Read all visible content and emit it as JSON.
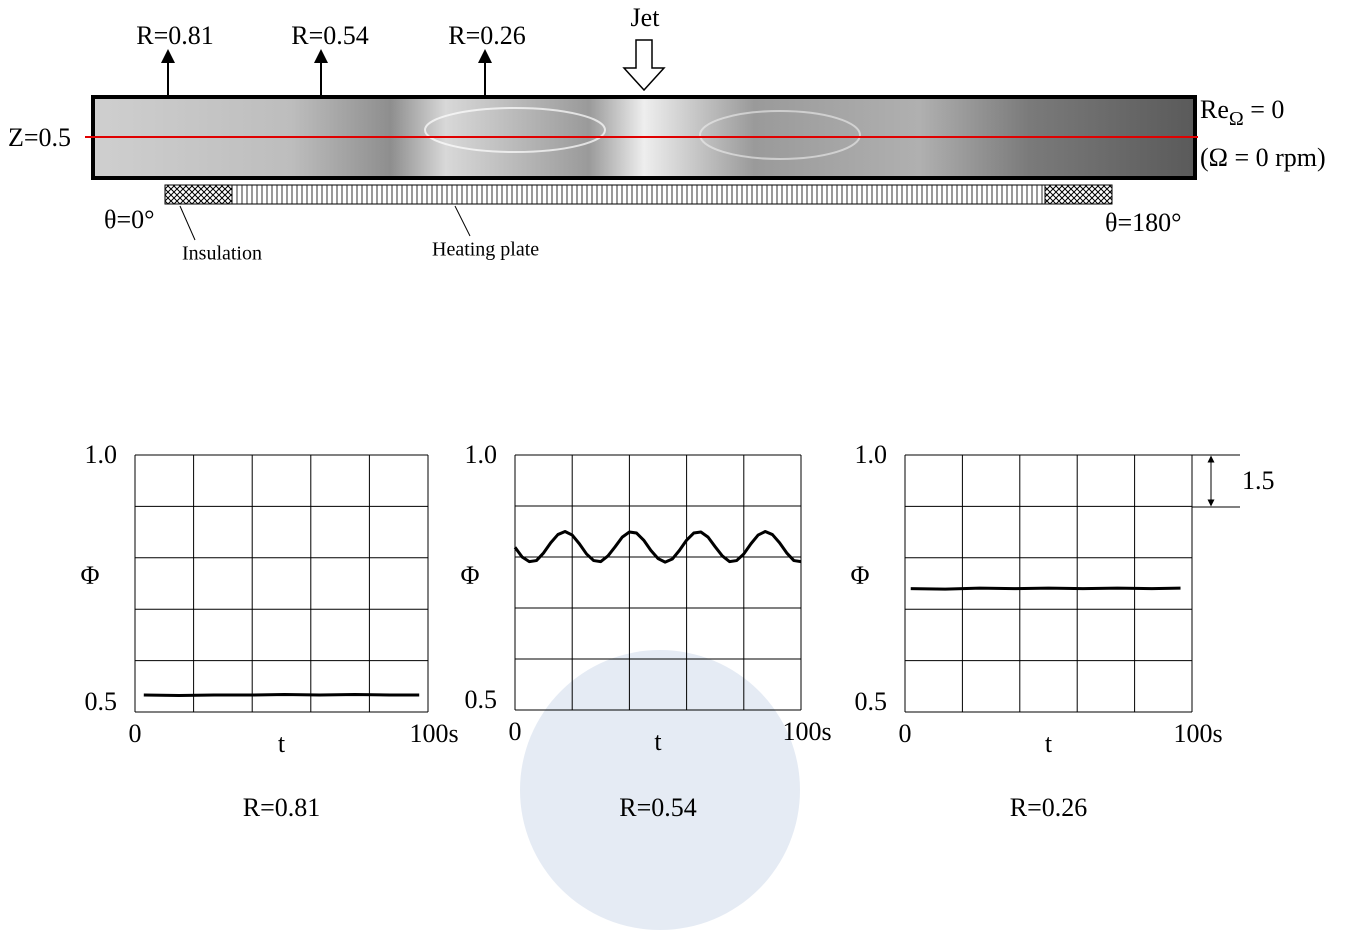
{
  "diagram": {
    "jet": "Jet",
    "probes": [
      "R=0.81",
      "R=0.54",
      "R=0.26"
    ],
    "z_label": "Z=0.5",
    "re_label": "Re",
    "re_sub": "Ω",
    "re_value": " = 0",
    "omega": "(Ω = 0 rpm)",
    "theta_start": "θ=0°",
    "theta_end": "θ=180°",
    "insulation": "Insulation",
    "heating_plate": "Heating plate",
    "scale_label": "1.5"
  },
  "chart_data": [
    {
      "type": "line",
      "title": "R=0.81",
      "y_label": "Φ",
      "x_label": "t",
      "xlim": [
        0,
        100
      ],
      "ylim": [
        0.5,
        1.0
      ],
      "xticks": [
        0,
        {
          "value": 100,
          "label": "100s"
        }
      ],
      "yticks": [
        0.5,
        {
          "value": 1.0,
          "label": "1.0"
        }
      ],
      "xgrid": [
        20,
        40,
        60,
        80
      ],
      "ygrid": [
        0.6,
        0.7,
        0.8,
        0.9
      ],
      "x": [
        3,
        15,
        27,
        39,
        51,
        63,
        75,
        87,
        97
      ],
      "series": [
        {
          "color": "#000000",
          "values": [
            0.533,
            0.532,
            0.533,
            0.533,
            0.534,
            0.533,
            0.534,
            0.533,
            0.533
          ]
        }
      ]
    },
    {
      "type": "line",
      "title": "R=0.54",
      "y_label": "Φ",
      "x_label": "t",
      "xlim": [
        0,
        100
      ],
      "ylim": [
        0.5,
        1.0
      ],
      "xticks": [
        0,
        {
          "value": 100,
          "label": "100s"
        }
      ],
      "yticks": [
        0.5,
        {
          "value": 1.0,
          "label": "1.0"
        }
      ],
      "xgrid": [
        20,
        40,
        60,
        80
      ],
      "ygrid": [
        0.6,
        0.7,
        0.8,
        0.9
      ],
      "x": [
        0,
        2.5,
        5,
        7.5,
        10,
        12.5,
        15,
        17.5,
        20,
        22.5,
        25,
        27.5,
        30,
        32.5,
        35,
        37.5,
        40,
        42.5,
        45,
        47.5,
        50,
        52.5,
        55,
        57.5,
        60,
        62.5,
        65,
        67.5,
        70,
        72.5,
        75,
        77.5,
        80,
        82.5,
        85,
        87.5,
        90,
        92.5,
        95,
        97.5,
        100
      ],
      "series": [
        {
          "color": "#000000",
          "values": [
            0.819,
            0.8,
            0.791,
            0.793,
            0.808,
            0.828,
            0.844,
            0.85,
            0.843,
            0.826,
            0.806,
            0.793,
            0.791,
            0.802,
            0.82,
            0.839,
            0.849,
            0.847,
            0.833,
            0.813,
            0.797,
            0.79,
            0.796,
            0.813,
            0.833,
            0.847,
            0.849,
            0.839,
            0.82,
            0.802,
            0.791,
            0.793,
            0.806,
            0.826,
            0.843,
            0.85,
            0.844,
            0.828,
            0.808,
            0.793,
            0.791
          ]
        }
      ]
    },
    {
      "type": "line",
      "title": "R=0.26",
      "y_label": "Φ",
      "x_label": "t",
      "xlim": [
        0,
        100
      ],
      "ylim": [
        0.5,
        1.0
      ],
      "xticks": [
        0,
        {
          "value": 100,
          "label": "100s"
        }
      ],
      "yticks": [
        0.5,
        {
          "value": 1.0,
          "label": "1.0"
        }
      ],
      "xgrid": [
        20,
        40,
        60,
        80
      ],
      "ygrid": [
        0.6,
        0.7,
        0.8,
        0.9
      ],
      "x": [
        2,
        14,
        26,
        38,
        50,
        62,
        74,
        86,
        96
      ],
      "series": [
        {
          "color": "#000000",
          "values": [
            0.74,
            0.739,
            0.741,
            0.74,
            0.741,
            0.74,
            0.741,
            0.74,
            0.741
          ]
        }
      ]
    }
  ]
}
